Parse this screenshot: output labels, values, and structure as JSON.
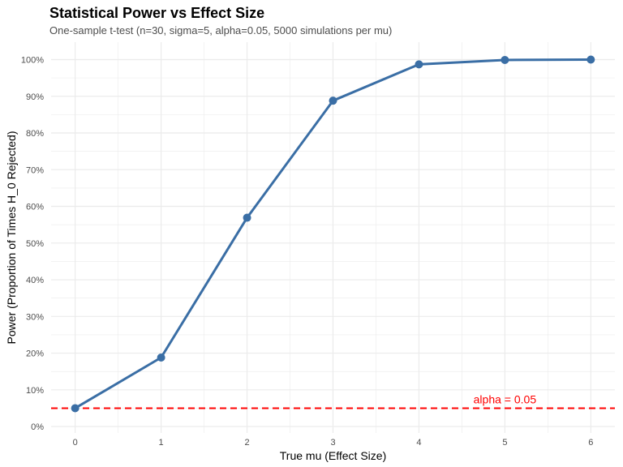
{
  "chart_data": {
    "type": "line",
    "title": "Statistical Power vs Effect Size",
    "subtitle": "One-sample t-test (n=30, sigma=5, alpha=0.05, 5000 simulations per mu)",
    "xlabel": "True mu (Effect Size)",
    "ylabel": "Power (Proportion of Times H_0 Rejected)",
    "x": [
      0,
      1,
      2,
      3,
      4,
      5,
      6
    ],
    "series": [
      {
        "values": [
          0.05,
          0.188,
          0.569,
          0.888,
          0.987,
          0.999,
          1.0
        ],
        "color": "#3a6ea5"
      }
    ],
    "xlim": [
      -0.28,
      6.28
    ],
    "ylim": [
      -0.0175,
      1.0475
    ],
    "x_ticks": [
      "0",
      "1",
      "2",
      "3",
      "4",
      "5",
      "6"
    ],
    "y_ticks": [
      {
        "value": 0.0,
        "label": "0%"
      },
      {
        "value": 0.1,
        "label": "10%"
      },
      {
        "value": 0.2,
        "label": "20%"
      },
      {
        "value": 0.3,
        "label": "30%"
      },
      {
        "value": 0.4,
        "label": "40%"
      },
      {
        "value": 0.5,
        "label": "50%"
      },
      {
        "value": 0.6,
        "label": "60%"
      },
      {
        "value": 0.7,
        "label": "70%"
      },
      {
        "value": 0.8,
        "label": "80%"
      },
      {
        "value": 0.9,
        "label": "90%"
      },
      {
        "value": 1.0,
        "label": "100%"
      }
    ],
    "reference_line": {
      "y": 0.05,
      "label": "alpha = 0.05",
      "label_x": 5.0,
      "color": "#ff0000",
      "style": "dashed"
    },
    "grid": true,
    "legend": "none",
    "colors": {
      "grid": "#ebebeb",
      "text": "#4d4d4d"
    }
  }
}
